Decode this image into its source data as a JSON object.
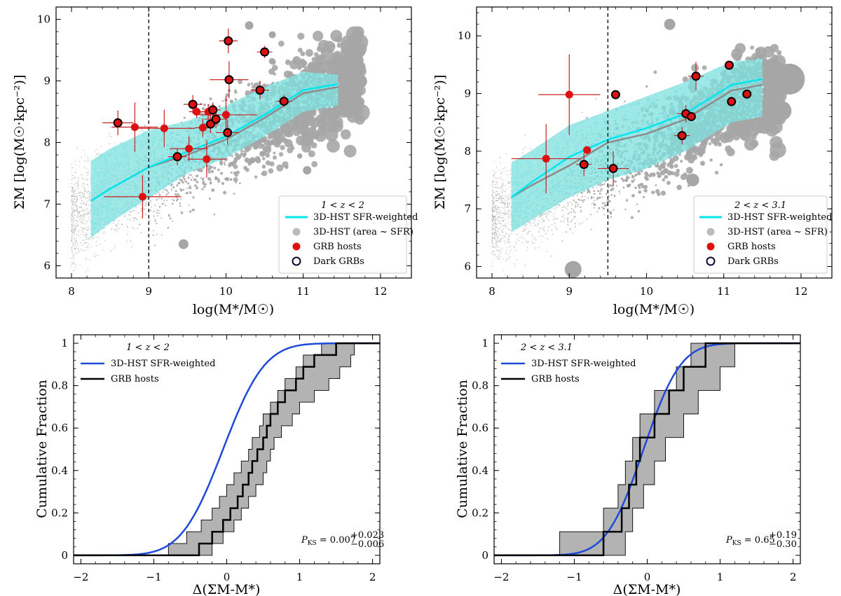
{
  "chart_data": [
    {
      "id": "p1",
      "type": "scatter",
      "legend_title": "1 < z < 2",
      "xlabel": "log(M*/M☉)",
      "ylabel": "ΣM [log(M☉·kpc⁻²)]",
      "xlim": [
        7.8,
        12.4
      ],
      "ylim": [
        5.8,
        10.2
      ],
      "xticks": [
        8,
        9,
        10,
        11,
        12
      ],
      "yticks": [
        6,
        7,
        8,
        9,
        10
      ],
      "vline_x": 9.0,
      "legend": [
        "3D-HST SFR-weighted",
        "3D-HST (area ~ SFR)",
        "GRB hosts",
        "Dark GRBs"
      ],
      "colors": {
        "cyan": "#00e5ee",
        "band": "#7fe0e0",
        "gray": "#a6a6a6",
        "red": "#dd1111"
      },
      "cyan_x": [
        8.25,
        8.5,
        9.0,
        9.5,
        10.0,
        10.5,
        11.0,
        11.45
      ],
      "cyan_y": [
        7.05,
        7.25,
        7.6,
        7.85,
        8.1,
        8.45,
        8.85,
        8.95
      ],
      "gray_y": [
        7.05,
        7.25,
        7.6,
        7.8,
        8.05,
        8.4,
        8.8,
        8.9
      ],
      "band_lo": [
        6.45,
        6.7,
        7.1,
        7.5,
        7.75,
        8.1,
        8.5,
        8.6
      ],
      "band_hi": [
        7.7,
        7.9,
        8.2,
        8.35,
        8.6,
        8.9,
        9.15,
        9.1
      ],
      "grb": [
        {
          "x": 8.6,
          "y": 8.32,
          "xe": 0.2,
          "ye": 0.2,
          "dark": true
        },
        {
          "x": 8.82,
          "y": 8.25,
          "xe": 0.3,
          "ye": 0.4,
          "dark": false
        },
        {
          "x": 8.92,
          "y": 7.12,
          "xe": 0.5,
          "ye": 0.35,
          "dark": false
        },
        {
          "x": 9.2,
          "y": 8.23,
          "xe": 0.4,
          "ye": 0.3,
          "dark": false
        },
        {
          "x": 9.37,
          "y": 7.77,
          "xe": 0.12,
          "ye": 0.14,
          "dark": true
        },
        {
          "x": 9.52,
          "y": 7.9,
          "xe": 0.25,
          "ye": 0.2,
          "dark": false
        },
        {
          "x": 9.57,
          "y": 8.62,
          "xe": 0.12,
          "ye": 0.15,
          "dark": true
        },
        {
          "x": 9.62,
          "y": 8.5,
          "xe": 0.1,
          "ye": 0.1,
          "dark": false
        },
        {
          "x": 9.7,
          "y": 8.24,
          "xe": 0.1,
          "ye": 0.15,
          "dark": false
        },
        {
          "x": 9.75,
          "y": 7.73,
          "xe": 0.25,
          "ye": 0.3,
          "dark": false
        },
        {
          "x": 9.77,
          "y": 8.5,
          "xe": 0.1,
          "ye": 0.12,
          "dark": false
        },
        {
          "x": 9.8,
          "y": 8.3,
          "xe": 0.1,
          "ye": 0.15,
          "dark": true
        },
        {
          "x": 9.83,
          "y": 8.53,
          "xe": 0.1,
          "ye": 0.12,
          "dark": true
        },
        {
          "x": 9.87,
          "y": 8.38,
          "xe": 0.15,
          "ye": 0.15,
          "dark": true
        },
        {
          "x": 10.0,
          "y": 8.45,
          "xe": 0.4,
          "ye": 0.3,
          "dark": false
        },
        {
          "x": 10.02,
          "y": 8.16,
          "xe": 0.15,
          "ye": 0.2,
          "dark": true
        },
        {
          "x": 10.03,
          "y": 9.65,
          "xe": 0.12,
          "ye": 0.2,
          "dark": true
        },
        {
          "x": 10.04,
          "y": 9.02,
          "xe": 0.25,
          "ye": 0.3,
          "dark": true
        },
        {
          "x": 10.44,
          "y": 8.85,
          "xe": 0.12,
          "ye": 0.15,
          "dark": true
        },
        {
          "x": 10.5,
          "y": 9.47,
          "xe": 0.1,
          "ye": 0.1,
          "dark": true
        },
        {
          "x": 10.75,
          "y": 8.67,
          "xe": 0.1,
          "ye": 0.1,
          "dark": true
        }
      ]
    },
    {
      "id": "p2",
      "type": "scatter",
      "legend_title": "2 < z < 3.1",
      "xlabel": "log(M*/M☉)",
      "ylabel": "ΣM [log(M☉·kpc⁻²)]",
      "xlim": [
        7.8,
        12.4
      ],
      "ylim": [
        5.8,
        10.5
      ],
      "xticks": [
        8,
        9,
        10,
        11,
        12
      ],
      "yticks": [
        6,
        7,
        8,
        9,
        10
      ],
      "vline_x": 9.5,
      "legend": [
        "3D-HST SFR-weighted",
        "3D-HST (area ~ SFR)",
        "GRB hosts",
        "Dark GRBs"
      ],
      "colors": {
        "cyan": "#00e5ee",
        "band": "#7fe0e0",
        "gray": "#a6a6a6",
        "red": "#dd1111"
      },
      "cyan_x": [
        8.25,
        8.5,
        9.0,
        9.5,
        10.0,
        10.5,
        11.1,
        11.5
      ],
      "cyan_y": [
        7.2,
        7.45,
        7.9,
        8.2,
        8.4,
        8.65,
        9.15,
        9.25
      ],
      "gray_y": [
        7.2,
        7.4,
        7.75,
        8.15,
        8.3,
        8.55,
        9.05,
        9.15
      ],
      "band_lo": [
        6.6,
        6.8,
        7.2,
        7.5,
        7.7,
        8.0,
        8.5,
        8.6
      ],
      "band_hi": [
        7.8,
        8.0,
        8.45,
        8.7,
        8.95,
        9.2,
        9.55,
        9.6
      ],
      "grb": [
        {
          "x": 8.7,
          "y": 7.87,
          "xe": 0.45,
          "ye": 0.6,
          "dark": false
        },
        {
          "x": 9.0,
          "y": 8.98,
          "xe": 0.4,
          "ye": 0.7,
          "dark": false
        },
        {
          "x": 9.19,
          "y": 7.77,
          "xe": 0.1,
          "ye": 0.2,
          "dark": true
        },
        {
          "x": 9.23,
          "y": 8.02,
          "xe": 0.05,
          "ye": 0.05,
          "dark": false
        },
        {
          "x": 9.57,
          "y": 7.7,
          "xe": 0.2,
          "ye": 0.3,
          "dark": true
        },
        {
          "x": 9.6,
          "y": 8.98,
          "xe": 0.05,
          "ye": 0.05,
          "dark": true
        },
        {
          "x": 10.46,
          "y": 8.27,
          "xe": 0.1,
          "ye": 0.15,
          "dark": true
        },
        {
          "x": 10.51,
          "y": 8.65,
          "xe": 0.12,
          "ye": 0.15,
          "dark": true
        },
        {
          "x": 10.58,
          "y": 8.6,
          "xe": 0.05,
          "ye": 0.05,
          "dark": true
        },
        {
          "x": 10.64,
          "y": 9.3,
          "xe": 0.1,
          "ye": 0.25,
          "dark": true
        },
        {
          "x": 11.07,
          "y": 9.49,
          "xe": 0.05,
          "ye": 0.05,
          "dark": true
        },
        {
          "x": 11.1,
          "y": 8.86,
          "xe": 0.05,
          "ye": 0.05,
          "dark": true
        },
        {
          "x": 11.3,
          "y": 8.99,
          "xe": 0.05,
          "ye": 0.05,
          "dark": true
        }
      ]
    },
    {
      "id": "p3",
      "type": "line",
      "legend_title": "1 < z < 2",
      "xlabel": "Δ(ΣM-M*)",
      "ylabel": "Cumulative Fraction",
      "xlim": [
        -2.1,
        2.1
      ],
      "ylim": [
        -0.04,
        1.04
      ],
      "xticks": [
        -2,
        -1,
        0,
        1,
        2
      ],
      "yticks": [
        0.0,
        0.2,
        0.4,
        0.6,
        0.8,
        1.0
      ],
      "legend": [
        "3D-HST SFR-weighted",
        "GRB hosts"
      ],
      "annotation": "P_KS = 0.007 (+0.023 / −0.006)",
      "annotation_parts": {
        "p": "P",
        "sub": "KS",
        "eq": " = 0.007",
        "up": "+0.023",
        "down": "−0.006"
      },
      "colors": {
        "blue": "#1f4ad9",
        "black": "#000000",
        "shade": "#b3b3b3"
      },
      "cdf_mu": -0.05,
      "cdf_sigma": 0.45,
      "step_x": [
        -0.38,
        -0.2,
        -0.05,
        0.05,
        0.15,
        0.22,
        0.3,
        0.35,
        0.42,
        0.5,
        0.55,
        0.6,
        0.7,
        0.8,
        0.95,
        1.05,
        1.2,
        1.5
      ],
      "lower_x": [
        -0.8,
        -0.55,
        -0.35,
        -0.2,
        -0.1,
        0.0,
        0.1,
        0.2,
        0.3,
        0.35,
        0.45,
        0.5,
        0.6,
        0.7,
        0.8,
        0.95,
        1.05,
        1.3
      ],
      "upper_x": [
        -0.2,
        -0.05,
        0.1,
        0.2,
        0.3,
        0.4,
        0.5,
        0.55,
        0.6,
        0.65,
        0.75,
        0.9,
        1.0,
        1.2,
        1.4,
        1.55,
        1.7,
        1.75
      ]
    },
    {
      "id": "p4",
      "type": "line",
      "legend_title": "2 < z < 3.1",
      "xlabel": "Δ(ΣM-M*)",
      "ylabel": "Cumulative Fraction",
      "xlim": [
        -2.1,
        2.1
      ],
      "ylim": [
        -0.04,
        1.04
      ],
      "xticks": [
        -2,
        -1,
        0,
        1,
        2
      ],
      "yticks": [
        0.0,
        0.2,
        0.4,
        0.6,
        0.8,
        1.0
      ],
      "legend": [
        "3D-HST SFR-weighted",
        "GRB hosts"
      ],
      "annotation": "P_KS = 0.65 (+0.19 / −0.30)",
      "annotation_parts": {
        "p": "P",
        "sub": "KS",
        "eq": " = 0.65",
        "up": "+0.19",
        "down": "−0.30"
      },
      "colors": {
        "blue": "#1f4ad9",
        "black": "#000000",
        "shade": "#b3b3b3"
      },
      "cdf_mu": -0.05,
      "cdf_sigma": 0.4,
      "step_x": [
        -0.6,
        -0.35,
        -0.25,
        -0.15,
        -0.1,
        0.1,
        0.3,
        0.5,
        0.8
      ],
      "lower_x": [
        -1.2,
        -0.6,
        -0.4,
        -0.3,
        -0.2,
        -0.1,
        0.1,
        0.4,
        0.6
      ],
      "upper_x": [
        -0.3,
        -0.2,
        -0.05,
        0.1,
        0.25,
        0.5,
        0.7,
        1.0,
        1.2
      ]
    }
  ]
}
